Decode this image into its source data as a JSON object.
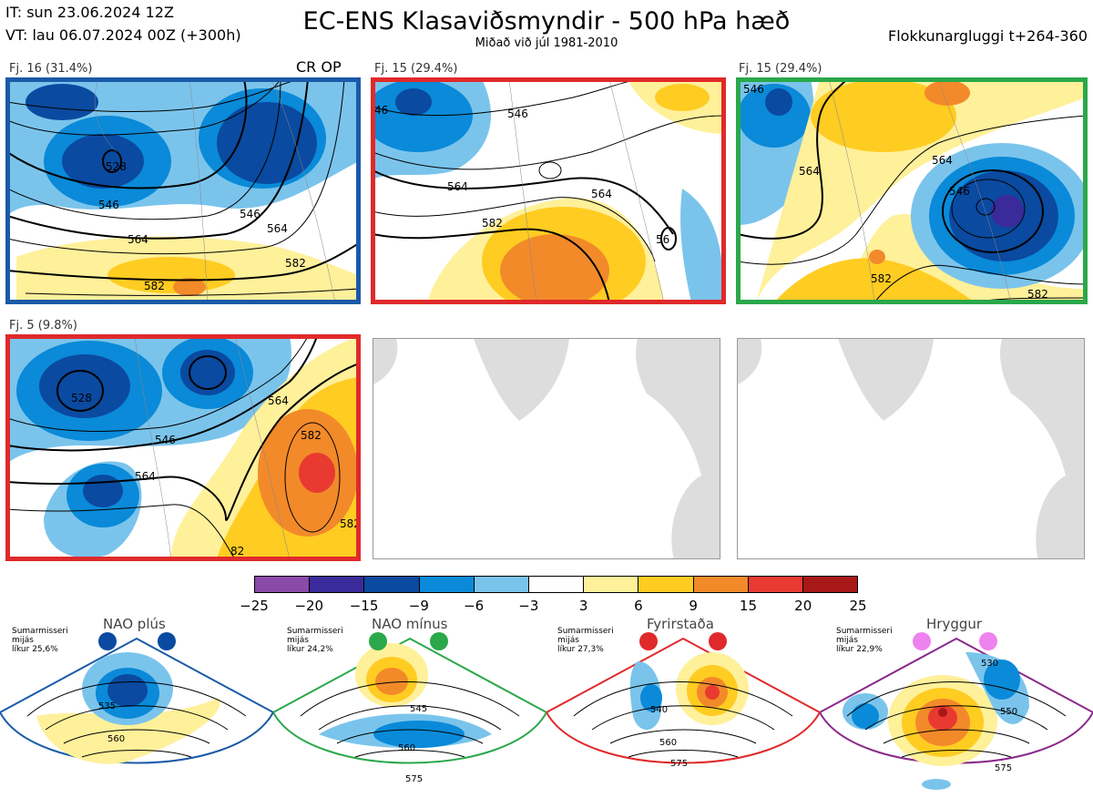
{
  "header": {
    "initial_time": "IT: sun 23.06.2024 12Z",
    "valid_time": "VT: lau 06.07.2024 00Z  (+300h)",
    "title": "EC-ENS Klasaviðsmyndir - 500 hPa hæð",
    "subtitle": "Miðað við júl 1981-2010",
    "cluster_window": "Flokkunargluggi t+264-360"
  },
  "clusters": [
    {
      "label": "Fj. 16 (31.4%)",
      "frame_color": "#1a5aa8",
      "marker": "CR OP",
      "contours": [
        "528",
        "546",
        "564",
        "582",
        "546",
        "564",
        "582"
      ]
    },
    {
      "label": "Fj. 15 (29.4%)",
      "frame_color": "#e0292a",
      "contours": [
        "546",
        "564",
        "582",
        "564",
        "46",
        "56"
      ]
    },
    {
      "label": "Fj. 15 (29.4%)",
      "frame_color": "#2aa84a",
      "contours": [
        "546",
        "564",
        "582",
        "564",
        "582",
        "546"
      ]
    },
    {
      "label": "Fj. 5 (9.8%)",
      "frame_color": "#e0292a",
      "contours": [
        "528",
        "546",
        "564",
        "582",
        "564",
        "582",
        "82"
      ]
    }
  ],
  "colorbar": {
    "colors": [
      "#8a4aa8",
      "#3a2a9a",
      "#0a4aa0",
      "#0a8ad8",
      "#7ac4ec",
      "#ffffff",
      "#fff09a",
      "#ffcc22",
      "#f28a2a",
      "#e83a30",
      "#a81818"
    ],
    "ticks": [
      "−25",
      "−20",
      "−15",
      "−9",
      "−6",
      "−3",
      "3",
      "6",
      "9",
      "15",
      "20",
      "25"
    ]
  },
  "regimes": [
    {
      "name": "NAO plús",
      "note": [
        "Sumarmisseri",
        "mijás",
        "líkur 25,6%"
      ],
      "color": "#0a4aa0",
      "border": "#1a5aa8",
      "contours": [
        "535",
        "560"
      ]
    },
    {
      "name": "NAO mínus",
      "note": [
        "Sumarmisseri",
        "mijás",
        "líkur 24,2%"
      ],
      "color": "#2aa84a",
      "border": "#2aa84a",
      "contours": [
        "545",
        "560",
        "575"
      ]
    },
    {
      "name": "Fyrirstaða",
      "note": [
        "Sumarmisseri",
        "mijás",
        "líkur 27,3%"
      ],
      "color": "#e0292a",
      "border": "#e0292a",
      "contours": [
        "540",
        "560",
        "575"
      ]
    },
    {
      "name": "Hryggur",
      "note": [
        "Sumarmisseri",
        "mijás",
        "líkur 22,9%"
      ],
      "color": "#ee82ee",
      "border": "#8a2a8a",
      "contours": [
        "530",
        "550",
        "575"
      ]
    }
  ]
}
